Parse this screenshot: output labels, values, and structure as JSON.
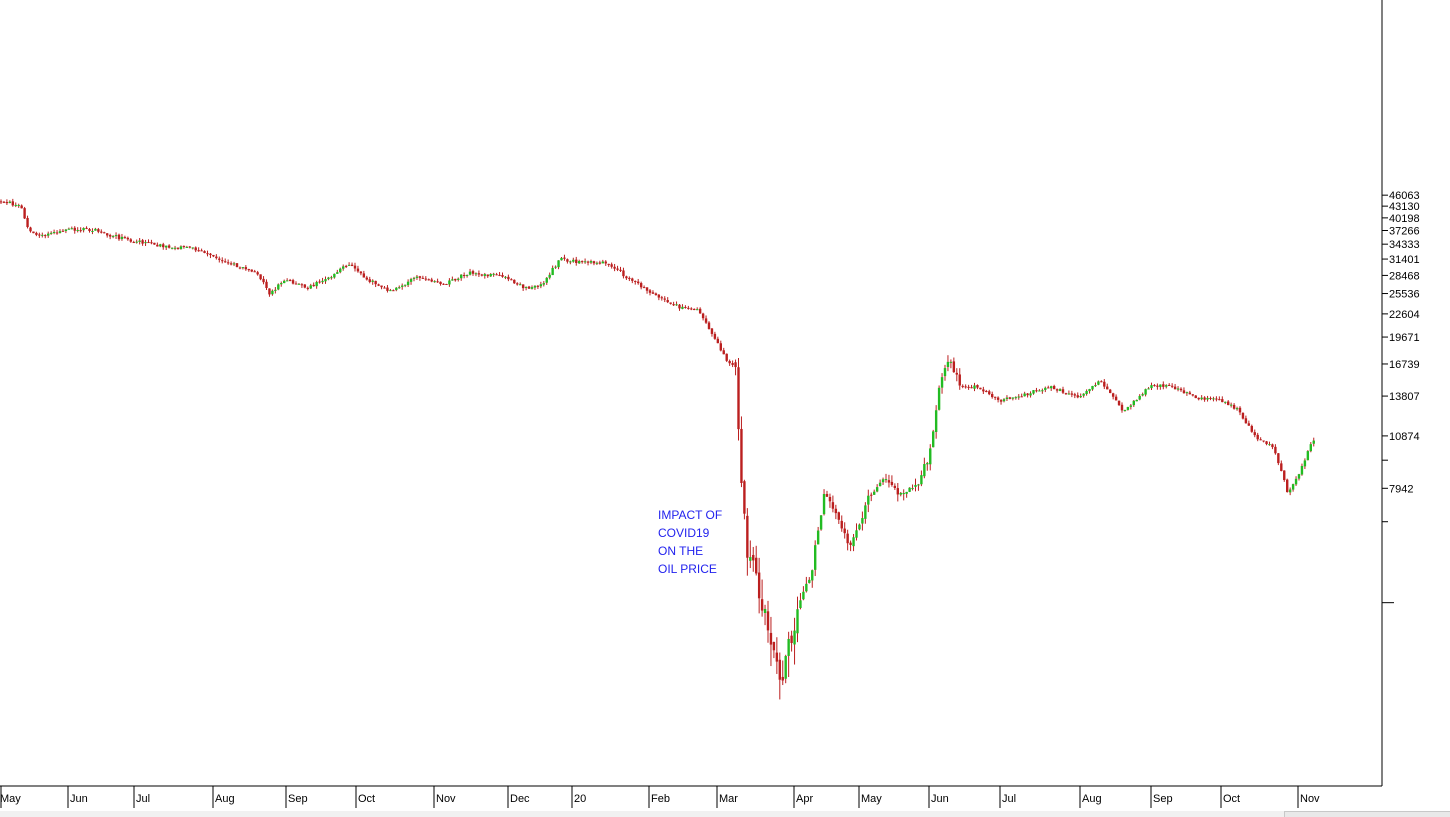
{
  "chart_data": {
    "type": "candlestick",
    "y_scale": "log",
    "ylim": [
      2000,
      50000
    ],
    "y_ticks": [
      "46063",
      "43130",
      "40198",
      "37266",
      "34333",
      "31401",
      "28468",
      "25536",
      "22604",
      "19671",
      "16739",
      "13807",
      "10874",
      "7942"
    ],
    "x_ticks": [
      "May",
      "Jun",
      "Jul",
      "Aug",
      "Sep",
      "Oct",
      "Nov",
      "Dec",
      "20",
      "Feb",
      "Mar",
      "Apr",
      "May",
      "Jun",
      "Jul",
      "Aug",
      "Sep",
      "Oct",
      "Nov"
    ],
    "x_range": [
      "2019-05",
      "2020-11"
    ],
    "up_color": "#22bb22",
    "down_color": "#bb1f1f",
    "annotation": [
      "IMPACT OF",
      "COVID19",
      "ON THE",
      "OIL PRICE"
    ],
    "annotation_color": "#2222ee",
    "series_close": [
      {
        "x": "2019-05-01",
        "y": 44500
      },
      {
        "x": "2019-05-10",
        "y": 43200
      },
      {
        "x": "2019-05-14",
        "y": 37000
      },
      {
        "x": "2019-05-20",
        "y": 36200
      },
      {
        "x": "2019-06-01",
        "y": 37600
      },
      {
        "x": "2019-06-12",
        "y": 37500
      },
      {
        "x": "2019-06-25",
        "y": 35600
      },
      {
        "x": "2019-07-10",
        "y": 34100
      },
      {
        "x": "2019-07-25",
        "y": 33300
      },
      {
        "x": "2019-08-05",
        "y": 31300
      },
      {
        "x": "2019-08-20",
        "y": 28600
      },
      {
        "x": "2019-08-25",
        "y": 25600
      },
      {
        "x": "2019-09-01",
        "y": 27800
      },
      {
        "x": "2019-09-10",
        "y": 26300
      },
      {
        "x": "2019-09-20",
        "y": 28300
      },
      {
        "x": "2019-09-28",
        "y": 30600
      },
      {
        "x": "2019-10-05",
        "y": 27900
      },
      {
        "x": "2019-10-15",
        "y": 25900
      },
      {
        "x": "2019-10-25",
        "y": 28200
      },
      {
        "x": "2019-11-05",
        "y": 27000
      },
      {
        "x": "2019-11-15",
        "y": 28900
      },
      {
        "x": "2019-11-28",
        "y": 28400
      },
      {
        "x": "2019-12-10",
        "y": 26300
      },
      {
        "x": "2019-12-18",
        "y": 27100
      },
      {
        "x": "2019-12-26",
        "y": 31400
      },
      {
        "x": "2020-01-05",
        "y": 30700
      },
      {
        "x": "2020-01-15",
        "y": 30900
      },
      {
        "x": "2020-01-25",
        "y": 27500
      },
      {
        "x": "2020-02-05",
        "y": 25200
      },
      {
        "x": "2020-02-15",
        "y": 23400
      },
      {
        "x": "2020-02-22",
        "y": 23000
      },
      {
        "x": "2020-02-28",
        "y": 20000
      },
      {
        "x": "2020-03-05",
        "y": 17100
      },
      {
        "x": "2020-03-09",
        "y": 16200
      },
      {
        "x": "2020-03-10",
        "y": 10000
      },
      {
        "x": "2020-03-13",
        "y": 5500
      },
      {
        "x": "2020-03-18",
        "y": 4300
      },
      {
        "x": "2020-03-23",
        "y": 3200
      },
      {
        "x": "2020-03-27",
        "y": 2600
      },
      {
        "x": "2020-04-02",
        "y": 3700
      },
      {
        "x": "2020-04-09",
        "y": 4800
      },
      {
        "x": "2020-04-15",
        "y": 7700
      },
      {
        "x": "2020-04-21",
        "y": 6600
      },
      {
        "x": "2020-04-27",
        "y": 5500
      },
      {
        "x": "2020-05-05",
        "y": 7400
      },
      {
        "x": "2020-05-12",
        "y": 8300
      },
      {
        "x": "2020-05-20",
        "y": 7700
      },
      {
        "x": "2020-05-27",
        "y": 8200
      },
      {
        "x": "2020-06-01",
        "y": 9700
      },
      {
        "x": "2020-06-05",
        "y": 14000
      },
      {
        "x": "2020-06-09",
        "y": 17300
      },
      {
        "x": "2020-06-15",
        "y": 14600
      },
      {
        "x": "2020-06-22",
        "y": 14600
      },
      {
        "x": "2020-07-01",
        "y": 13400
      },
      {
        "x": "2020-07-10",
        "y": 13900
      },
      {
        "x": "2020-07-20",
        "y": 14600
      },
      {
        "x": "2020-08-01",
        "y": 13700
      },
      {
        "x": "2020-08-10",
        "y": 15200
      },
      {
        "x": "2020-08-20",
        "y": 12600
      },
      {
        "x": "2020-09-01",
        "y": 14800
      },
      {
        "x": "2020-09-10",
        "y": 14600
      },
      {
        "x": "2020-09-22",
        "y": 13600
      },
      {
        "x": "2020-10-01",
        "y": 13500
      },
      {
        "x": "2020-10-08",
        "y": 12700
      },
      {
        "x": "2020-10-15",
        "y": 10800
      },
      {
        "x": "2020-10-22",
        "y": 10200
      },
      {
        "x": "2020-10-28",
        "y": 7700
      },
      {
        "x": "2020-11-02",
        "y": 8800
      },
      {
        "x": "2020-11-05",
        "y": 9800
      },
      {
        "x": "2020-11-09",
        "y": 11000
      }
    ]
  }
}
